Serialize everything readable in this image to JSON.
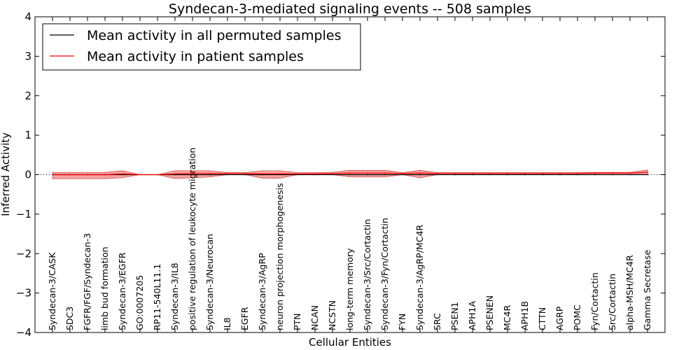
{
  "chart_data": {
    "type": "line",
    "title": "Syndecan-3-mediated signaling events -- 508 samples",
    "xlabel": "Cellular Entities",
    "ylabel": "Inferred Activity",
    "ylim": [
      -4,
      4
    ],
    "yticks": [
      -4,
      -3,
      -2,
      -1,
      0,
      1,
      2,
      3,
      4
    ],
    "ytick_labels": [
      "−4",
      "−3",
      "−2",
      "−1",
      "0",
      "1",
      "2",
      "3",
      "4"
    ],
    "legend_position": "top-left",
    "categories": [
      "Syndecan-3/CASK",
      "SDC3",
      "FGFR/FGF/Syndecan-3",
      "limb bud formation",
      "Syndecan-3/EGFR",
      "GO:0007205",
      "RP11-540L11.1",
      "Syndecan-3/IL8",
      "positive regulation of leukocyte migration",
      "Syndecan-3/Neurocan",
      "IL8",
      "EGFR",
      "Syndecan-3/AgRP",
      "neuron projection morphogenesis",
      "PTN",
      "NCAN",
      "NCSTN",
      "long-term memory",
      "Syndecan-3/Src/Cortactin",
      "Syndecan-3/Fyn/Cortactin",
      "FYN",
      "Syndecan-3/AgRP/MC4R",
      "SRC",
      "PSEN1",
      "APH1A",
      "PSENEN",
      "MC4R",
      "APH1B",
      "CTTN",
      "AGRP",
      "POMC",
      "Fyn/Cortactin",
      "Src/Cortactin",
      "alpha-MSH/MC4R",
      "Gamma Secretase"
    ],
    "series": [
      {
        "name": "Mean activity in all permuted samples",
        "color": "#000000",
        "values": [
          0,
          0,
          0,
          0,
          0,
          0,
          0,
          0,
          0,
          0,
          0,
          0,
          0,
          0,
          0,
          0,
          0,
          0,
          0,
          0,
          0,
          0,
          0,
          0,
          0,
          0,
          0,
          0,
          0,
          0,
          0,
          0,
          0,
          0,
          0
        ]
      },
      {
        "name": "Mean activity in patient samples",
        "color": "#ff0000",
        "values": [
          0,
          0,
          0,
          0,
          0.02,
          0,
          0,
          0.02,
          0.03,
          0.03,
          0.03,
          0.03,
          0.02,
          0.02,
          0.02,
          0.02,
          0.03,
          0.04,
          0.04,
          0.04,
          0.03,
          0.04,
          0.03,
          0.03,
          0.03,
          0.03,
          0.03,
          0.03,
          0.03,
          0.03,
          0.03,
          0.04,
          0.04,
          0.04,
          0.06
        ],
        "lower": [
          -0.1,
          -0.1,
          -0.1,
          -0.1,
          -0.08,
          0,
          0,
          -0.1,
          -0.08,
          -0.06,
          0,
          0,
          -0.09,
          -0.09,
          0,
          0,
          0,
          -0.06,
          -0.06,
          -0.06,
          0,
          -0.08,
          0,
          0,
          0,
          0,
          0,
          0,
          0,
          0,
          0,
          0,
          0,
          0,
          0
        ],
        "upper": [
          0.06,
          0.06,
          0.06,
          0.06,
          0.1,
          0,
          0,
          0.1,
          0.1,
          0.1,
          0.05,
          0.05,
          0.1,
          0.1,
          0.05,
          0.05,
          0.06,
          0.11,
          0.11,
          0.11,
          0.05,
          0.11,
          0.05,
          0.05,
          0.05,
          0.05,
          0.05,
          0.05,
          0.05,
          0.05,
          0.05,
          0.06,
          0.06,
          0.06,
          0.12
        ]
      }
    ]
  }
}
